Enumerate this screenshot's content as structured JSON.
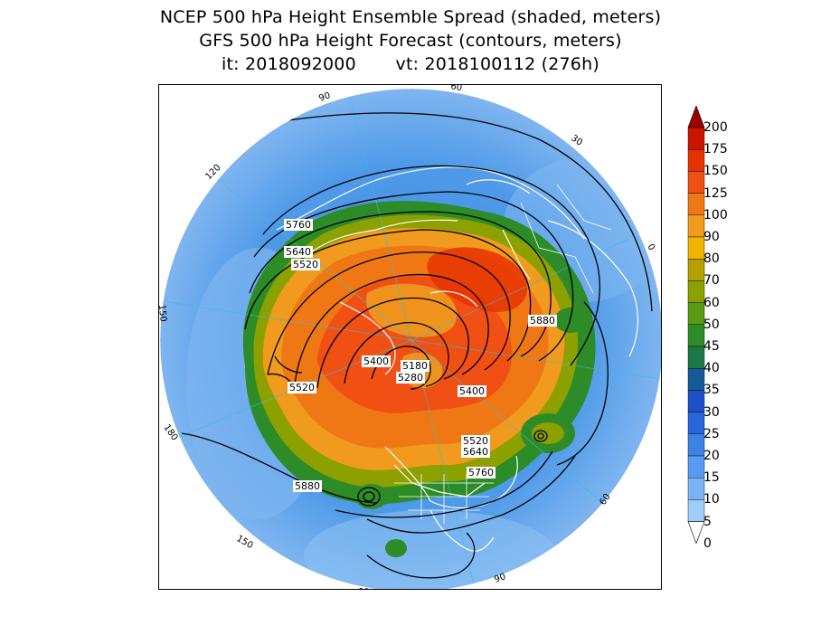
{
  "header": {
    "line1": "NCEP 500 hPa Height Ensemble Spread (shaded, meters)",
    "line2": "GFS 500 hPa Height Forecast (contours, meters)",
    "line3": "it: 2018092000       vt: 2018100112 (276h)"
  },
  "map": {
    "longitude_labels": [
      "90",
      "60",
      "30",
      "0",
      "30",
      "60",
      "90",
      "120",
      "150",
      "180",
      "150",
      "120"
    ],
    "contour_labels": [
      "5760",
      "5640",
      "5520",
      "5880",
      "5400",
      "5180",
      "5280",
      "5520",
      "5400",
      "5520",
      "5640",
      "5760",
      "5880"
    ],
    "colors": {
      "ocean_low": "#7fb5f0",
      "ocean_mid": "#3c8ee0",
      "green": "#3f9a2a",
      "olive": "#9c9a10",
      "orange": "#f08a1c",
      "red_orange": "#f0501c",
      "contour": "#000000",
      "coastline": "#ffffff"
    }
  },
  "colorbar": {
    "levels": [
      "200",
      "175",
      "150",
      "125",
      "100",
      "90",
      "80",
      "70",
      "60",
      "50",
      "45",
      "40",
      "35",
      "30",
      "25",
      "20",
      "15",
      "10",
      "5",
      "0"
    ],
    "colors": [
      "#9e0000",
      "#c81400",
      "#e63200",
      "#f05014",
      "#f07814",
      "#f09a1e",
      "#f0b400",
      "#b4a000",
      "#8ca000",
      "#5a9a14",
      "#2d8c28",
      "#1e7846",
      "#145a96",
      "#1e50c8",
      "#2864dc",
      "#3c82e6",
      "#5a9af0",
      "#78b4f5",
      "#a0ccfa"
    ]
  }
}
